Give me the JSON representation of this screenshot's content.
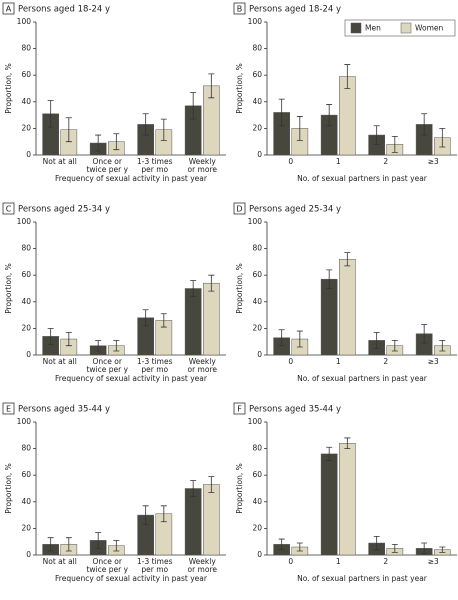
{
  "chart_data": [
    {
      "type": "bar",
      "panel": "A",
      "title": "Persons aged 18-24 y",
      "xlabel": "Frequency of sexual activity in past year",
      "ylabel": "Proportion, %",
      "categories": [
        "Not at all",
        [
          "Once or",
          "twice per y"
        ],
        [
          "1-3 times",
          "per mo"
        ],
        [
          "Weekly",
          "or more"
        ]
      ],
      "series": [
        {
          "color": "#48473d",
          "values": [
            31,
            9,
            23,
            37
          ],
          "errors": [
            10,
            6,
            8,
            10
          ]
        },
        {
          "color": "#ddd8bd",
          "values": [
            19,
            10,
            19,
            52
          ],
          "errors": [
            9,
            6,
            8,
            9
          ]
        }
      ],
      "ylim": [
        0,
        100
      ],
      "yticks": [
        0,
        20,
        40,
        60,
        80,
        100
      ]
    },
    {
      "type": "bar",
      "panel": "B",
      "title": "Persons aged 18-24 y",
      "xlabel": "No. of sexual partners in past year",
      "ylabel": "Proportion, %",
      "categories": [
        "0",
        "1",
        "2",
        "≥3"
      ],
      "series": [
        {
          "name": "Men",
          "color": "#48473d",
          "values": [
            32,
            30,
            15,
            23
          ],
          "errors": [
            10,
            8,
            7,
            8
          ]
        },
        {
          "name": "Women",
          "color": "#ddd8bd",
          "values": [
            20,
            59,
            8,
            13
          ],
          "errors": [
            9,
            9,
            6,
            7
          ]
        }
      ],
      "ylim": [
        0,
        100
      ],
      "yticks": [
        0,
        20,
        40,
        60,
        80,
        100
      ],
      "legend": "upper right"
    },
    {
      "type": "bar",
      "panel": "C",
      "title": "Persons aged 25-34 y",
      "xlabel": "Frequency of sexual activity in past year",
      "ylabel": "Proportion, %",
      "categories": [
        "Not at all",
        [
          "Once or",
          "twice per y"
        ],
        [
          "1-3 times",
          "per mo"
        ],
        [
          "Weekly",
          "or more"
        ]
      ],
      "series": [
        {
          "color": "#48473d",
          "values": [
            14,
            7,
            28,
            50
          ],
          "errors": [
            6,
            4,
            6,
            6
          ]
        },
        {
          "color": "#ddd8bd",
          "values": [
            12,
            7,
            26,
            54
          ],
          "errors": [
            5,
            4,
            5,
            6
          ]
        }
      ],
      "ylim": [
        0,
        100
      ],
      "yticks": [
        0,
        20,
        40,
        60,
        80,
        100
      ]
    },
    {
      "type": "bar",
      "panel": "D",
      "title": "Persons aged 25-34 y",
      "xlabel": "No. of sexual partners in past year",
      "ylabel": "Proportion, %",
      "categories": [
        "0",
        "1",
        "2",
        "≥3"
      ],
      "series": [
        {
          "color": "#48473d",
          "values": [
            13,
            57,
            11,
            16
          ],
          "errors": [
            6,
            7,
            6,
            7
          ]
        },
        {
          "color": "#ddd8bd",
          "values": [
            12,
            72,
            7,
            7
          ],
          "errors": [
            6,
            5,
            4,
            4
          ]
        }
      ],
      "ylim": [
        0,
        100
      ],
      "yticks": [
        0,
        20,
        40,
        60,
        80,
        100
      ]
    },
    {
      "type": "bar",
      "panel": "E",
      "title": "Persons aged 35-44 y",
      "xlabel": "Frequency of sexual activity in past year",
      "ylabel": "Proportion, %",
      "categories": [
        "Not at all",
        [
          "Once or",
          "twice per y"
        ],
        [
          "1-3 times",
          "per mo"
        ],
        [
          "Weekly",
          "or more"
        ]
      ],
      "series": [
        {
          "color": "#48473d",
          "values": [
            8,
            11,
            30,
            50
          ],
          "errors": [
            5,
            6,
            7,
            6
          ]
        },
        {
          "color": "#ddd8bd",
          "values": [
            8,
            7,
            31,
            53
          ],
          "errors": [
            5,
            4,
            6,
            6
          ]
        }
      ],
      "ylim": [
        0,
        100
      ],
      "yticks": [
        0,
        20,
        40,
        60,
        80,
        100
      ]
    },
    {
      "type": "bar",
      "panel": "F",
      "title": "Persons aged 35-44 y",
      "xlabel": "No. of sexual partners in past year",
      "ylabel": "Proportion, %",
      "categories": [
        "0",
        "1",
        "2",
        "≥3"
      ],
      "series": [
        {
          "color": "#48473d",
          "values": [
            8,
            76,
            9,
            5
          ],
          "errors": [
            4,
            5,
            5,
            4
          ]
        },
        {
          "color": "#ddd8bd",
          "values": [
            6,
            84,
            5,
            4
          ],
          "errors": [
            3,
            4,
            3,
            2
          ]
        }
      ],
      "ylim": [
        0,
        100
      ],
      "yticks": [
        0,
        20,
        40,
        60,
        80,
        100
      ]
    }
  ]
}
